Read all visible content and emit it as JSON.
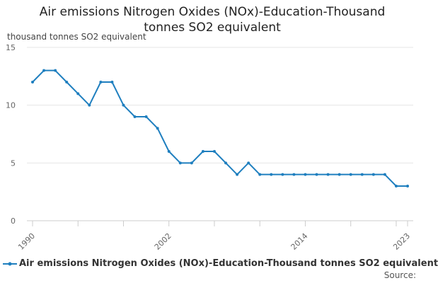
{
  "chart_data": {
    "type": "line",
    "title": "Air emissions Nitrogen Oxides (NOx)-Education-Thousand tonnes SO2 equivalent",
    "title_lines": [
      "Air emissions Nitrogen Oxides (NOx)-Education-Thousand",
      "tonnes SO2 equivalent"
    ],
    "ylabel": "thousand tonnes SO2 equivalent",
    "xlabel": "",
    "ylim": [
      0,
      15
    ],
    "y_ticks": [
      0,
      5,
      10,
      15
    ],
    "x_range": [
      1990,
      2023
    ],
    "x_tick_labels": [
      1990,
      2002,
      2014,
      2023
    ],
    "x": [
      1990,
      1991,
      1992,
      1993,
      1994,
      1995,
      1996,
      1997,
      1998,
      1999,
      2000,
      2001,
      2002,
      2003,
      2004,
      2005,
      2006,
      2007,
      2008,
      2009,
      2010,
      2011,
      2012,
      2013,
      2014,
      2015,
      2016,
      2017,
      2018,
      2019,
      2020,
      2021,
      2022,
      2023
    ],
    "series": [
      {
        "name": "Air emissions Nitrogen Oxides (NOx)-Education-Thousand tonnes SO2 equivalent",
        "color": "#1f7fbf",
        "values": [
          12,
          13,
          13,
          12,
          11,
          10,
          12,
          12,
          10,
          9,
          9,
          8,
          6,
          5,
          5,
          6,
          6,
          5,
          4,
          5,
          4,
          4,
          4,
          4,
          4,
          4,
          4,
          4,
          4,
          4,
          4,
          4,
          3,
          3
        ]
      }
    ],
    "grid": true,
    "legend_position": "bottom",
    "source_label": "Source:"
  }
}
